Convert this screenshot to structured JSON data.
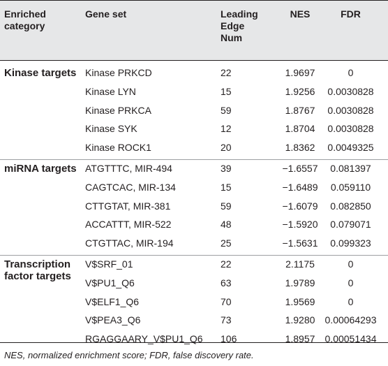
{
  "header": {
    "columns": [
      "Enriched category",
      "Gene set",
      "Leading Edge Num",
      "NES",
      "FDR"
    ]
  },
  "groups": [
    {
      "category": "Kinase targets",
      "rows": [
        [
          "Kinase PRKCD",
          "22",
          "1.9697",
          "0"
        ],
        [
          "Kinase LYN",
          "15",
          "1.9256",
          "0.0030828"
        ],
        [
          "Kinase PRKCA",
          "59",
          "1.8767",
          "0.0030828"
        ],
        [
          "Kinase SYK",
          "12",
          "1.8704",
          "0.0030828"
        ],
        [
          "Kinase ROCK1",
          "20",
          "1.8362",
          "0.0049325"
        ]
      ]
    },
    {
      "category": "miRNA targets",
      "rows": [
        [
          "ATGTTTC, MIR-494",
          "39",
          "−1.6557",
          "0.081397"
        ],
        [
          "CAGTCAC, MIR-134",
          "15",
          "−1.6489",
          "0.059110"
        ],
        [
          "CTTGTAT, MIR-381",
          "59",
          "−1.6079",
          "0.082850"
        ],
        [
          "ACCATTT, MIR-522",
          "48",
          "−1.5920",
          "0.079071"
        ],
        [
          "CTGTTAC, MIR-194",
          "25",
          "−1.5631",
          "0.099323"
        ]
      ]
    },
    {
      "category": "Transcription factor targets",
      "rows": [
        [
          "V$SRF_01",
          "22",
          "2.1175",
          "0"
        ],
        [
          "V$PU1_Q6",
          "63",
          "1.9789",
          "0"
        ],
        [
          "V$ELF1_Q6",
          "70",
          "1.9569",
          "0"
        ],
        [
          "V$PEA3_Q6",
          "73",
          "1.9280",
          "0.00064293"
        ],
        [
          "RGAGGAARY_V$PU1_Q6",
          "106",
          "1.8957",
          "0.00051434"
        ]
      ]
    }
  ],
  "footnote": "NES, normalized enrichment score; FDR, false discovery rate."
}
